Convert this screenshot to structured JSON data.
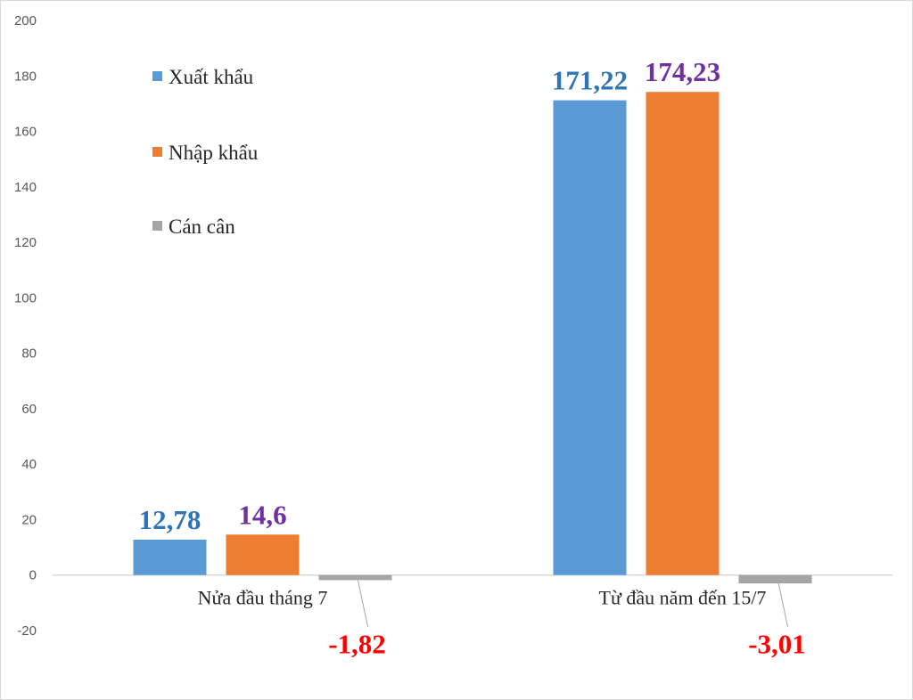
{
  "chart_data": {
    "type": "bar",
    "categories": [
      "Nửa đầu tháng 7",
      "Từ đầu năm đến 15/7"
    ],
    "series": [
      {
        "name": "Xuất khẩu",
        "values": [
          12.78,
          171.22
        ],
        "color": "#5b9bd5",
        "label_color": "#2e75b6",
        "labels": [
          "12,78",
          "171,22"
        ]
      },
      {
        "name": "Nhập khẩu",
        "values": [
          14.6,
          174.23
        ],
        "color": "#ed7d31",
        "label_color": "#7030a0",
        "labels": [
          "14,6",
          "174,23"
        ]
      },
      {
        "name": "Cán cân",
        "values": [
          -1.82,
          -3.01
        ],
        "color": "#a5a5a5",
        "label_color": "#ff0000",
        "labels": [
          "-1,82",
          "-3,01"
        ]
      }
    ],
    "yticks": [
      "200",
      "180",
      "160",
      "140",
      "120",
      "100",
      "80",
      "60",
      "40",
      "20",
      "0",
      "-20"
    ],
    "ylim": [
      -20,
      200
    ],
    "grid": false,
    "legend_position": "top-left"
  }
}
